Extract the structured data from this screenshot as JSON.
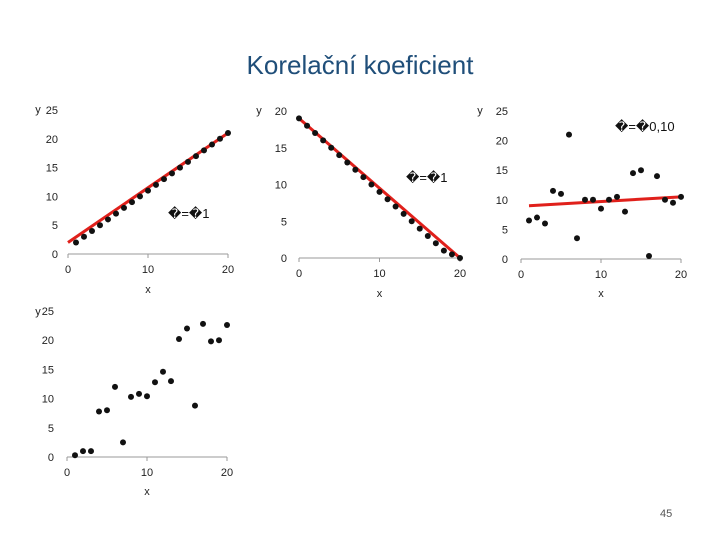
{
  "title": "Korelační koeficient",
  "page_number": "45",
  "colors": {
    "regression_line": "#e0201b",
    "points": "#111111",
    "axis": "#999999",
    "title": "#1f4e79"
  },
  "chart_data": [
    {
      "type": "scatter",
      "xlabel": "x",
      "ylabel": "y",
      "xlim": [
        0,
        20
      ],
      "ylim": [
        0,
        25
      ],
      "xticks": [
        0,
        10,
        20
      ],
      "yticks": [
        0,
        5,
        10,
        15,
        20,
        25
      ],
      "annotation": "�=�1",
      "show_xlabel": true,
      "line": {
        "x": [
          0,
          20
        ],
        "y": [
          2,
          21
        ]
      },
      "x": [
        1,
        2,
        3,
        4,
        5,
        6,
        7,
        8,
        9,
        10,
        11,
        12,
        13,
        14,
        15,
        16,
        17,
        18,
        19,
        20
      ],
      "y": [
        2,
        3,
        4,
        5,
        6,
        7,
        8,
        9,
        10,
        11,
        12,
        13,
        14,
        15,
        16,
        17,
        18,
        19,
        20,
        21
      ]
    },
    {
      "type": "scatter",
      "xlabel": "x",
      "ylabel": "y",
      "xlim": [
        0,
        20
      ],
      "ylim": [
        0,
        20
      ],
      "xticks": [
        0,
        10,
        20
      ],
      "yticks": [
        0,
        5,
        10,
        15,
        20
      ],
      "annotation": "�=�1",
      "show_xlabel": true,
      "line": {
        "x": [
          0,
          20
        ],
        "y": [
          19,
          0
        ]
      },
      "x": [
        0,
        1,
        2,
        3,
        4,
        5,
        6,
        7,
        8,
        9,
        10,
        11,
        12,
        13,
        14,
        15,
        16,
        17,
        18,
        19,
        20
      ],
      "y": [
        19,
        18,
        17,
        16,
        15,
        14,
        13,
        12,
        11,
        10,
        9,
        8,
        7,
        6,
        5,
        4,
        3,
        2,
        1,
        0.5,
        0
      ]
    },
    {
      "type": "scatter",
      "xlabel": "x",
      "ylabel": "y",
      "xlim": [
        0,
        20
      ],
      "ylim": [
        0,
        25
      ],
      "xticks": [
        0,
        10,
        20
      ],
      "yticks": [
        0,
        5,
        10,
        15,
        20,
        25
      ],
      "annotation": "�=�0,10",
      "show_xlabel": true,
      "line": {
        "x": [
          1,
          20
        ],
        "y": [
          9,
          10.5
        ]
      },
      "x": [
        1,
        2,
        3,
        4,
        5,
        6,
        7,
        8,
        9,
        10,
        11,
        12,
        13,
        14,
        15,
        16,
        17,
        18,
        19,
        20
      ],
      "y": [
        6.5,
        7,
        6,
        11.5,
        11,
        21,
        3.5,
        10,
        10,
        8.5,
        10,
        10.5,
        8,
        14.5,
        15,
        0.5,
        14,
        10,
        9.5,
        10.5
      ]
    },
    {
      "type": "scatter",
      "xlabel": "x",
      "ylabel": "y",
      "xlim": [
        0,
        20
      ],
      "ylim": [
        0,
        25
      ],
      "xticks": [
        0,
        10,
        20
      ],
      "yticks": [
        0,
        5,
        10,
        15,
        20,
        25
      ],
      "annotation": "",
      "show_xlabel": true,
      "x": [
        1,
        2,
        3,
        4,
        5,
        6,
        7,
        8,
        9,
        10,
        11,
        12,
        13,
        14,
        15,
        16,
        17,
        18,
        19,
        20
      ],
      "y": [
        0.3,
        1,
        1,
        7.8,
        8,
        12,
        2.5,
        10.3,
        10.8,
        10.4,
        12.8,
        14.6,
        13,
        20.2,
        22,
        8.8,
        22.8,
        19.8,
        20,
        22.6
      ]
    }
  ]
}
